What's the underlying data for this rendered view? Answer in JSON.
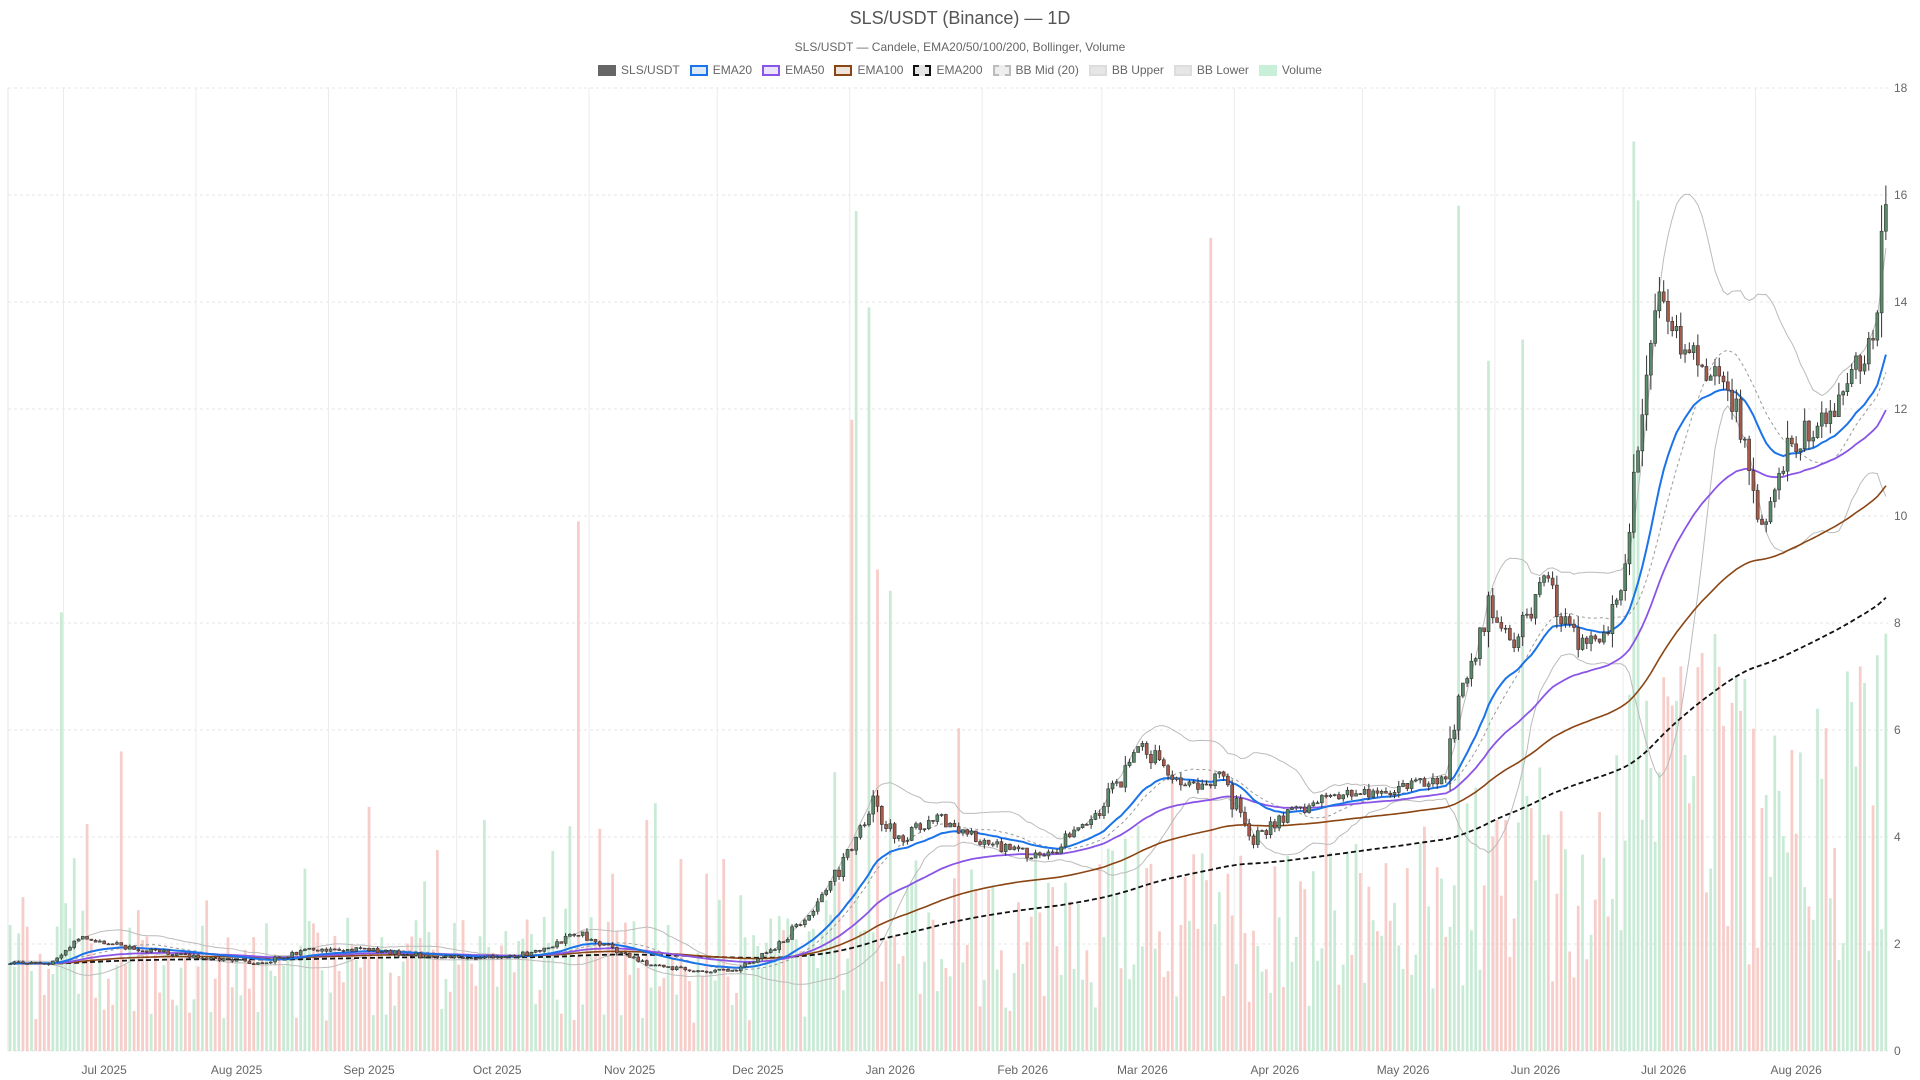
{
  "chart_data": {
    "type": "candlestick",
    "title": "SLS/USDT (Binance) — 1D",
    "subtitle": "SLS/USDT — Candele, EMA20/50/100/200, Bollinger, Volume",
    "legend_position": "top-center",
    "grid": true,
    "colors": {
      "up": "#5a8a6a",
      "down": "#a85a4a",
      "volume_up": "#bfe8cf",
      "volume_down": "#f6c4c0",
      "ema20": "#1a73e8",
      "ema50": "#8a55e6",
      "ema100": "#8b4513",
      "ema200": "#111111",
      "bb": "#bbbbbb"
    },
    "legend": [
      {
        "label": "SLS/USDT",
        "swatch_fill": "#666666",
        "swatch_border": "#666666",
        "dashed": false
      },
      {
        "label": "EMA20",
        "swatch_fill": "#dbe8f7",
        "swatch_border": "#1a73e8",
        "dashed": false
      },
      {
        "label": "EMA50",
        "swatch_fill": "#ebe3fb",
        "swatch_border": "#8a55e6",
        "dashed": false
      },
      {
        "label": "EMA100",
        "swatch_fill": "#eee3da",
        "swatch_border": "#8b4513",
        "dashed": false
      },
      {
        "label": "EMA200",
        "swatch_fill": "#e4e4e4",
        "swatch_border": "#111111",
        "dashed": true
      },
      {
        "label": "BB Mid (20)",
        "swatch_fill": "#eeeeee",
        "swatch_border": "#bbbbbb",
        "dashed": true
      },
      {
        "label": "BB Upper",
        "swatch_fill": "#e6e6e6",
        "swatch_border": "#dddddd",
        "dashed": false
      },
      {
        "label": "BB Lower",
        "swatch_fill": "#e6e6e6",
        "swatch_border": "#dddddd",
        "dashed": false
      },
      {
        "label": "Volume",
        "swatch_fill": "#c8efd7",
        "swatch_border": "#c8efd7",
        "dashed": false
      }
    ],
    "x_range": [
      "2025-06-18",
      "2026-08-31"
    ],
    "x_ticks": [
      {
        "date": "2025-07-01",
        "label": "Jul 2025"
      },
      {
        "date": "2025-08-01",
        "label": "Aug 2025"
      },
      {
        "date": "2025-09-01",
        "label": "Sep 2025"
      },
      {
        "date": "2025-10-01",
        "label": "Oct 2025"
      },
      {
        "date": "2025-11-01",
        "label": "Nov 2025"
      },
      {
        "date": "2025-12-01",
        "label": "Dec 2025"
      },
      {
        "date": "2026-01-01",
        "label": "Jan 2026"
      },
      {
        "date": "2026-02-01",
        "label": "Feb 2026"
      },
      {
        "date": "2026-03-01",
        "label": "Mar 2026"
      },
      {
        "date": "2026-04-01",
        "label": "Apr 2026"
      },
      {
        "date": "2026-05-01",
        "label": "May 2026"
      },
      {
        "date": "2026-06-01",
        "label": "Jun 2026"
      },
      {
        "date": "2026-07-01",
        "label": "Jul 2026"
      },
      {
        "date": "2026-08-01",
        "label": "Aug 2026"
      }
    ],
    "y_range": [
      0,
      18
    ],
    "y_ticks": [
      0,
      2,
      4,
      6,
      8,
      10,
      12,
      14,
      16,
      18
    ],
    "price_anchors": [
      {
        "date": "2025-06-18",
        "close": 1.65
      },
      {
        "date": "2025-06-28",
        "close": 1.65
      },
      {
        "date": "2025-07-04",
        "close": 2.15
      },
      {
        "date": "2025-07-15",
        "close": 1.95
      },
      {
        "date": "2025-08-01",
        "close": 1.75
      },
      {
        "date": "2025-08-15",
        "close": 1.65
      },
      {
        "date": "2025-08-28",
        "close": 1.9
      },
      {
        "date": "2025-09-10",
        "close": 1.9
      },
      {
        "date": "2025-09-25",
        "close": 1.75
      },
      {
        "date": "2025-10-10",
        "close": 1.75
      },
      {
        "date": "2025-10-20",
        "close": 1.85
      },
      {
        "date": "2025-10-29",
        "close": 2.2
      },
      {
        "date": "2025-11-05",
        "close": 1.95
      },
      {
        "date": "2025-11-15",
        "close": 1.6
      },
      {
        "date": "2025-11-25",
        "close": 1.5
      },
      {
        "date": "2025-12-05",
        "close": 1.5
      },
      {
        "date": "2025-12-15",
        "close": 2.0
      },
      {
        "date": "2025-12-25",
        "close": 2.9
      },
      {
        "date": "2026-01-02",
        "close": 3.9
      },
      {
        "date": "2026-01-06",
        "close": 4.6
      },
      {
        "date": "2026-01-12",
        "close": 3.9
      },
      {
        "date": "2026-01-20",
        "close": 4.4
      },
      {
        "date": "2026-02-01",
        "close": 3.9
      },
      {
        "date": "2026-02-15",
        "close": 3.6
      },
      {
        "date": "2026-02-28",
        "close": 4.5
      },
      {
        "date": "2026-03-10",
        "close": 5.7
      },
      {
        "date": "2026-03-20",
        "close": 4.9
      },
      {
        "date": "2026-03-28",
        "close": 5.1
      },
      {
        "date": "2026-04-05",
        "close": 4.0
      },
      {
        "date": "2026-04-15",
        "close": 4.5
      },
      {
        "date": "2026-04-25",
        "close": 4.8
      },
      {
        "date": "2026-05-05",
        "close": 4.8
      },
      {
        "date": "2026-05-20",
        "close": 5.1
      },
      {
        "date": "2026-05-24",
        "close": 6.8
      },
      {
        "date": "2026-05-30",
        "close": 8.3
      },
      {
        "date": "2026-06-05",
        "close": 7.6
      },
      {
        "date": "2026-06-12",
        "close": 8.8
      },
      {
        "date": "2026-06-20",
        "close": 7.6
      },
      {
        "date": "2026-06-27",
        "close": 7.7
      },
      {
        "date": "2026-07-02",
        "close": 9.5
      },
      {
        "date": "2026-07-05",
        "close": 12.4
      },
      {
        "date": "2026-07-09",
        "close": 14.0
      },
      {
        "date": "2026-07-16",
        "close": 13.0
      },
      {
        "date": "2026-07-25",
        "close": 12.5
      },
      {
        "date": "2026-08-02",
        "close": 10.0
      },
      {
        "date": "2026-08-08",
        "close": 11.2
      },
      {
        "date": "2026-08-18",
        "close": 12.0
      },
      {
        "date": "2026-08-28",
        "close": 13.2
      },
      {
        "date": "2026-08-31",
        "close": 15.5
      }
    ],
    "volume_spikes": [
      {
        "date": "2025-06-30",
        "volume": 8.2
      },
      {
        "date": "2025-07-14",
        "volume": 5.6
      },
      {
        "date": "2025-10-27",
        "volume": 4.2
      },
      {
        "date": "2025-10-29",
        "volume": 9.9
      },
      {
        "date": "2026-01-01",
        "volume": 11.8
      },
      {
        "date": "2026-01-02",
        "volume": 15.7
      },
      {
        "date": "2026-01-05",
        "volume": 13.9
      },
      {
        "date": "2026-01-07",
        "volume": 9.0
      },
      {
        "date": "2026-01-10",
        "volume": 8.6
      },
      {
        "date": "2026-03-26",
        "volume": 15.2
      },
      {
        "date": "2026-05-23",
        "volume": 15.8
      },
      {
        "date": "2026-05-30",
        "volume": 12.9
      },
      {
        "date": "2026-06-07",
        "volume": 13.3
      },
      {
        "date": "2026-07-03",
        "volume": 17.0
      },
      {
        "date": "2026-07-04",
        "volume": 15.9
      },
      {
        "date": "2026-08-31",
        "volume": 7.8
      }
    ]
  }
}
